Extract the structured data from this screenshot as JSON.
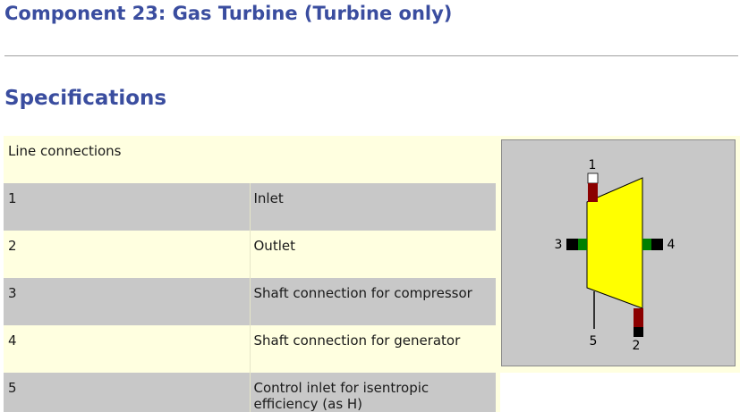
{
  "page": {
    "title": "Component 23: Gas Turbine (Turbine only)",
    "section": "Specifications"
  },
  "table": {
    "header": "Line connections",
    "rows": [
      {
        "num": "1",
        "label": "Inlet"
      },
      {
        "num": "2",
        "label": "Outlet"
      },
      {
        "num": "3",
        "label": "Shaft connection for compressor"
      },
      {
        "num": "4",
        "label": "Shaft connection for generator"
      },
      {
        "num": "5",
        "label": "Control inlet for isentropic efficiency (as H)"
      }
    ]
  },
  "diagram": {
    "port_labels": {
      "p1": "1",
      "p2": "2",
      "p3": "3",
      "p4": "4",
      "p5": "5"
    },
    "colors": {
      "body": "#ffff00",
      "inlet": "#8b0000",
      "inlet_top": "#ffffff",
      "outlet": "#8b0000",
      "outlet_end": "#000000",
      "shaft": "#008000",
      "shaft_end": "#000000"
    }
  }
}
